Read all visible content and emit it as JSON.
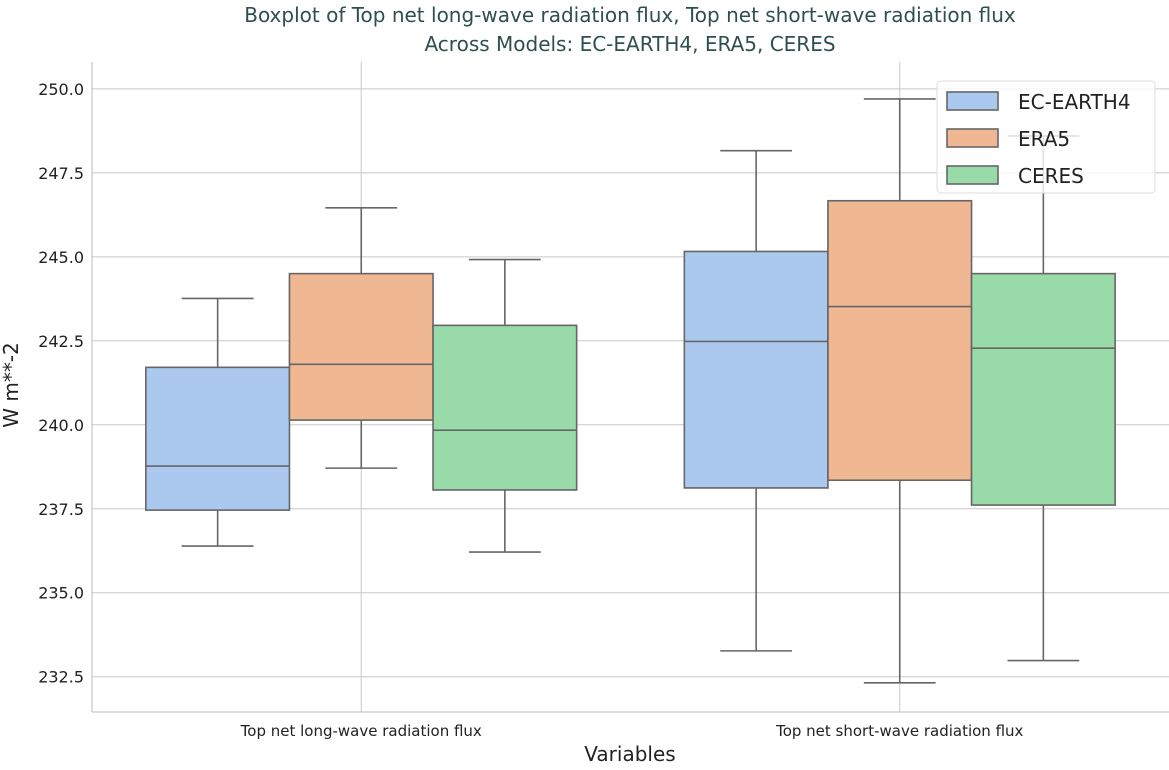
{
  "chart_data": {
    "type": "boxplot",
    "title": "Boxplot of Top net long-wave radiation flux, Top net short-wave radiation flux\nAcross Models: EC-EARTH4, ERA5, CERES",
    "title_lines": [
      "Boxplot of Top net long-wave radiation flux, Top net short-wave radiation flux",
      "Across Models: EC-EARTH4, ERA5, CERES"
    ],
    "xlabel": "Variables",
    "ylabel": "W m**-2",
    "ylim": [
      231.45,
      250.8
    ],
    "yticks": [
      "232.5",
      "235.0",
      "237.5",
      "240.0",
      "242.5",
      "245.0",
      "247.5",
      "250.0"
    ],
    "grid": true,
    "legend_placement": "top-right",
    "categories": [
      "Top net long-wave radiation flux",
      "Top net short-wave radiation flux"
    ],
    "series": [
      {
        "name": "EC-EARTH4",
        "color": "#abc9ee",
        "boxes": [
          {
            "whislo": 236.39,
            "q1": 237.46,
            "med": 238.77,
            "q3": 241.71,
            "whishi": 243.76
          },
          {
            "whislo": 233.27,
            "q1": 238.12,
            "med": 242.48,
            "q3": 245.16,
            "whishi": 248.16
          }
        ]
      },
      {
        "name": "ERA5",
        "color": "#f0b793",
        "boxes": [
          {
            "whislo": 238.71,
            "q1": 240.14,
            "med": 241.8,
            "q3": 244.5,
            "whishi": 246.46
          },
          {
            "whislo": 232.32,
            "q1": 238.35,
            "med": 243.52,
            "q3": 246.67,
            "whishi": 249.7
          }
        ]
      },
      {
        "name": "CERES",
        "color": "#99dba8",
        "boxes": [
          {
            "whislo": 236.21,
            "q1": 238.06,
            "med": 239.84,
            "q3": 242.96,
            "whishi": 244.92
          },
          {
            "whislo": 232.98,
            "q1": 237.61,
            "med": 242.28,
            "q3": 244.5,
            "whishi": 248.6
          }
        ]
      }
    ]
  }
}
